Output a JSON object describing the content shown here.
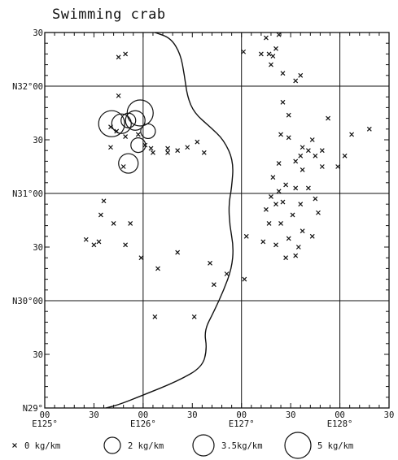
{
  "title": "Swimming crab",
  "x_ticks": [
    {
      "top": "00",
      "bottom": "E125°"
    },
    {
      "top": "30",
      "bottom": ""
    },
    {
      "top": "00",
      "bottom": "E126°"
    },
    {
      "top": "30",
      "bottom": ""
    },
    {
      "top": "00",
      "bottom": "E127°"
    },
    {
      "top": "30",
      "bottom": ""
    },
    {
      "top": "00",
      "bottom": "E128°"
    },
    {
      "top": "30",
      "bottom": ""
    }
  ],
  "y_ticks": [
    "30",
    "N32°00",
    "30",
    "N31°00",
    "30",
    "N30°00",
    "30",
    "N29°"
  ],
  "legend": [
    {
      "label": "0 kg/km"
    },
    {
      "label": "2 kg/km"
    },
    {
      "label": "3.5kg/km"
    },
    {
      "label": "5 kg/km"
    }
  ],
  "chart_data": {
    "type": "scatter",
    "title": "Swimming crab",
    "xlim": [
      125.0,
      128.5
    ],
    "ylim": [
      29.0,
      32.5
    ],
    "x_tick_values": [
      125.0,
      125.5,
      126.0,
      126.5,
      127.0,
      127.5,
      128.0,
      128.5
    ],
    "y_tick_values": [
      32.5,
      32.0,
      31.5,
      31.0,
      30.5,
      30.0,
      29.5,
      29.0
    ],
    "grid": true,
    "legend_placement": "bottom",
    "series": [
      {
        "name": "0 kg/km",
        "marker": "x",
        "points": [
          [
            125.75,
            32.27
          ],
          [
            125.82,
            32.3
          ],
          [
            125.75,
            31.91
          ],
          [
            125.67,
            31.62
          ],
          [
            125.73,
            31.58
          ],
          [
            125.67,
            31.43
          ],
          [
            125.82,
            31.53
          ],
          [
            125.95,
            31.55
          ],
          [
            126.02,
            31.45
          ],
          [
            126.08,
            31.42
          ],
          [
            126.1,
            31.38
          ],
          [
            126.25,
            31.42
          ],
          [
            126.25,
            31.38
          ],
          [
            126.35,
            31.4
          ],
          [
            126.45,
            31.43
          ],
          [
            126.55,
            31.48
          ],
          [
            126.62,
            31.38
          ],
          [
            125.8,
            31.25
          ],
          [
            125.6,
            30.93
          ],
          [
            125.57,
            30.8
          ],
          [
            125.7,
            30.72
          ],
          [
            125.55,
            30.55
          ],
          [
            125.5,
            30.52
          ],
          [
            125.42,
            30.57
          ],
          [
            125.82,
            30.52
          ],
          [
            125.87,
            30.72
          ],
          [
            125.98,
            30.4
          ],
          [
            126.15,
            30.3
          ],
          [
            126.35,
            30.45
          ],
          [
            126.72,
            30.15
          ],
          [
            126.85,
            30.25
          ],
          [
            127.03,
            30.2
          ],
          [
            126.12,
            29.85
          ],
          [
            126.52,
            29.85
          ],
          [
            126.68,
            30.35
          ],
          [
            127.02,
            32.32
          ],
          [
            127.2,
            32.3
          ],
          [
            127.28,
            32.3
          ],
          [
            127.32,
            32.28
          ],
          [
            127.35,
            32.35
          ],
          [
            127.25,
            32.45
          ],
          [
            127.38,
            32.48
          ],
          [
            127.3,
            32.2
          ],
          [
            127.42,
            32.12
          ],
          [
            127.55,
            32.05
          ],
          [
            127.6,
            32.1
          ],
          [
            127.42,
            31.85
          ],
          [
            127.48,
            31.73
          ],
          [
            127.48,
            31.52
          ],
          [
            127.62,
            31.43
          ],
          [
            127.4,
            31.55
          ],
          [
            127.6,
            31.35
          ],
          [
            127.72,
            31.5
          ],
          [
            127.68,
            31.4
          ],
          [
            127.75,
            31.35
          ],
          [
            127.82,
            31.4
          ],
          [
            127.82,
            31.25
          ],
          [
            127.62,
            31.22
          ],
          [
            127.55,
            31.3
          ],
          [
            127.38,
            31.28
          ],
          [
            127.32,
            31.15
          ],
          [
            127.45,
            31.08
          ],
          [
            127.38,
            31.02
          ],
          [
            127.55,
            31.05
          ],
          [
            127.68,
            31.05
          ],
          [
            127.6,
            30.9
          ],
          [
            127.75,
            30.95
          ],
          [
            127.78,
            30.82
          ],
          [
            127.52,
            30.8
          ],
          [
            127.4,
            30.72
          ],
          [
            127.28,
            30.72
          ],
          [
            127.25,
            30.85
          ],
          [
            127.35,
            30.9
          ],
          [
            127.3,
            30.97
          ],
          [
            127.42,
            30.92
          ],
          [
            127.48,
            30.58
          ],
          [
            127.62,
            30.65
          ],
          [
            127.72,
            30.6
          ],
          [
            127.58,
            30.5
          ],
          [
            127.55,
            30.42
          ],
          [
            127.45,
            30.4
          ],
          [
            127.35,
            30.52
          ],
          [
            127.22,
            30.55
          ],
          [
            127.05,
            30.6
          ],
          [
            127.98,
            31.25
          ],
          [
            128.05,
            31.35
          ],
          [
            128.12,
            31.55
          ],
          [
            128.3,
            31.6
          ],
          [
            127.88,
            31.7
          ]
        ]
      },
      {
        "name": "2 kg/km",
        "marker": "circle",
        "points": [
          [
            125.85,
            31.68
          ],
          [
            125.95,
            31.45
          ],
          [
            126.05,
            31.58
          ]
        ]
      },
      {
        "name": "3.5kg/km",
        "marker": "circle",
        "points": [
          [
            125.78,
            31.65
          ],
          [
            125.92,
            31.68
          ],
          [
            125.85,
            31.28
          ]
        ]
      },
      {
        "name": "5 kg/km",
        "marker": "circle",
        "points": [
          [
            125.68,
            31.65
          ],
          [
            125.97,
            31.75
          ]
        ]
      }
    ],
    "line_series": {
      "name": "",
      "points": [
        [
          126.12,
          32.5
        ],
        [
          126.28,
          32.45
        ],
        [
          126.38,
          32.3
        ],
        [
          126.42,
          32.1
        ],
        [
          126.45,
          31.9
        ],
        [
          126.52,
          31.75
        ],
        [
          126.68,
          31.62
        ],
        [
          126.82,
          31.5
        ],
        [
          126.92,
          31.3
        ],
        [
          126.9,
          31.05
        ],
        [
          126.87,
          30.9
        ],
        [
          126.88,
          30.7
        ],
        [
          126.92,
          30.5
        ],
        [
          126.9,
          30.3
        ],
        [
          126.82,
          30.1
        ],
        [
          126.72,
          29.9
        ],
        [
          126.62,
          29.72
        ],
        [
          126.65,
          29.55
        ],
        [
          126.6,
          29.38
        ],
        [
          126.35,
          29.25
        ],
        [
          126.0,
          29.12
        ],
        [
          125.75,
          29.03
        ],
        [
          125.62,
          29.0
        ]
      ]
    }
  }
}
